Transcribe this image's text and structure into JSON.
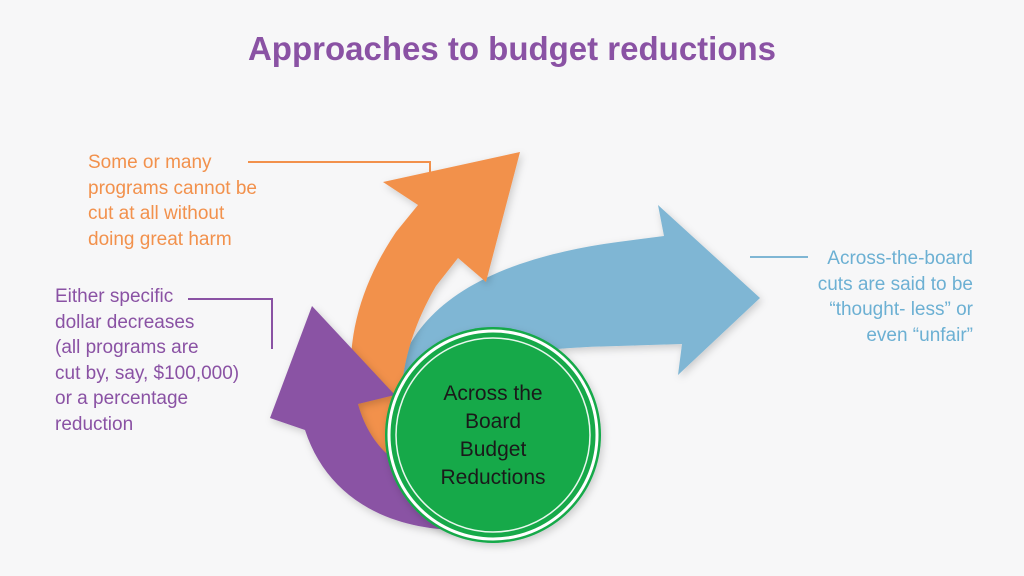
{
  "title": "Approaches to budget reductions",
  "center": {
    "lines": [
      "Across the",
      "Board",
      "Budget",
      "Reductions"
    ]
  },
  "labels": {
    "orange": "Some or many\nprograms cannot be\ncut at all without\ndoing great harm",
    "purple": "Either specific\ndollar decreases\n (all programs are\ncut by, say, $100,000)\nor a percentage\nreduction",
    "blue": "Across-the-board\ncuts are said to be\n“thought- less” or\neven “unfair”"
  },
  "colors": {
    "title": "#8a52a4",
    "orange": "#f2914c",
    "purple": "#8a52a4",
    "blue": "#7fb6d4",
    "green": "#12a94a"
  },
  "icons": {
    "orange_arrow": "curved-arrow-up-right",
    "blue_arrow": "curved-arrow-right",
    "purple_arrow": "curved-arrow-up-left"
  }
}
